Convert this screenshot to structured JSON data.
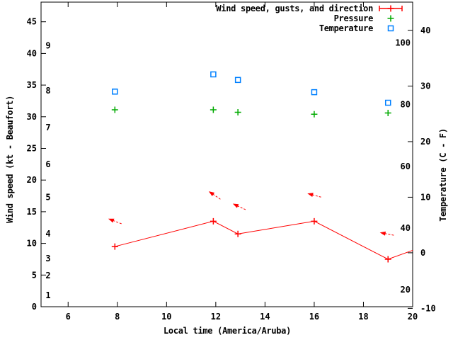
{
  "figure": {
    "background": "#ffffff",
    "axis_color": "#000000",
    "text_color": "#000000"
  },
  "chart_data": {
    "type": "line",
    "title": "",
    "xlabel": "Local time (America/Aruba)",
    "ylabel_left": "Wind speed (kt - Beaufort)",
    "ylabel_right": "Temperature (C - F)",
    "grid": false,
    "x_axis": {
      "range": [
        4.9,
        20
      ],
      "ticks": [
        6,
        8,
        10,
        12,
        14,
        16,
        18,
        20
      ]
    },
    "y_left_axis": {
      "unit": "kt",
      "range_kt": [
        0,
        48.1
      ],
      "ticks_kt": [
        0,
        5,
        10,
        15,
        20,
        25,
        30,
        35,
        40,
        45
      ],
      "beaufort_labels": [
        {
          "label": "1",
          "kt": 1.8
        },
        {
          "label": "2",
          "kt": 4.9
        },
        {
          "label": "3",
          "kt": 7.6
        },
        {
          "label": "4",
          "kt": 11.5
        },
        {
          "label": "5",
          "kt": 17.3
        },
        {
          "label": "6",
          "kt": 22.5
        },
        {
          "label": "7",
          "kt": 28.3
        },
        {
          "label": "8",
          "kt": 34.1
        },
        {
          "label": "9",
          "kt": 41.2
        }
      ]
    },
    "y_right_axis": {
      "unit": "C",
      "range_c": [
        -9.7,
        45.1
      ],
      "ticks_c": [
        -10,
        0,
        10,
        20,
        30,
        40
      ],
      "ticks_f": [
        20,
        40,
        60,
        80,
        100
      ]
    },
    "legend": {
      "position": "top-right",
      "items": [
        {
          "label": "Wind speed, gusts, and direction",
          "marker": "errorbar-plus",
          "color": "#ff0000"
        },
        {
          "label": "Pressure",
          "marker": "plus",
          "color": "#00aa00"
        },
        {
          "label": "Temperature",
          "marker": "open-square",
          "color": "#0080ff"
        }
      ]
    },
    "series": [
      {
        "name": "Wind speed, gusts, and direction",
        "axis": "left",
        "color": "#ff0000",
        "marker": "plus",
        "line": true,
        "x": [
          7.9,
          11.9,
          12.9,
          16.0,
          19.0,
          20.0
        ],
        "y_kt": [
          9.5,
          13.5,
          11.5,
          13.5,
          7.5,
          8.9
        ],
        "markers_on_last_point": false
      },
      {
        "name": "Pressure",
        "axis": "hidden (plotted positions given in left-axis kt-equivalent units)",
        "color": "#00aa00",
        "marker": "plus",
        "line": false,
        "x": [
          7.9,
          11.9,
          12.9,
          16.0,
          19.0
        ],
        "y_plot_kt_equiv": [
          31.1,
          31.1,
          30.7,
          30.4,
          30.6
        ]
      },
      {
        "name": "Temperature",
        "axis": "right",
        "color": "#0080ff",
        "marker": "open-square",
        "line": false,
        "x": [
          7.9,
          11.9,
          12.9,
          16.0,
          19.0
        ],
        "y_c": [
          29.0,
          32.1,
          31.1,
          28.9,
          27.0
        ]
      }
    ],
    "wind_direction_arrows": [
      {
        "x": 7.9,
        "kt": 13.5,
        "angle_deg": 159
      },
      {
        "x": 11.95,
        "kt": 17.6,
        "angle_deg": 146
      },
      {
        "x": 12.95,
        "kt": 15.8,
        "angle_deg": 155
      },
      {
        "x": 16.0,
        "kt": 17.6,
        "angle_deg": 165
      },
      {
        "x": 18.95,
        "kt": 11.5,
        "angle_deg": 169
      }
    ]
  }
}
